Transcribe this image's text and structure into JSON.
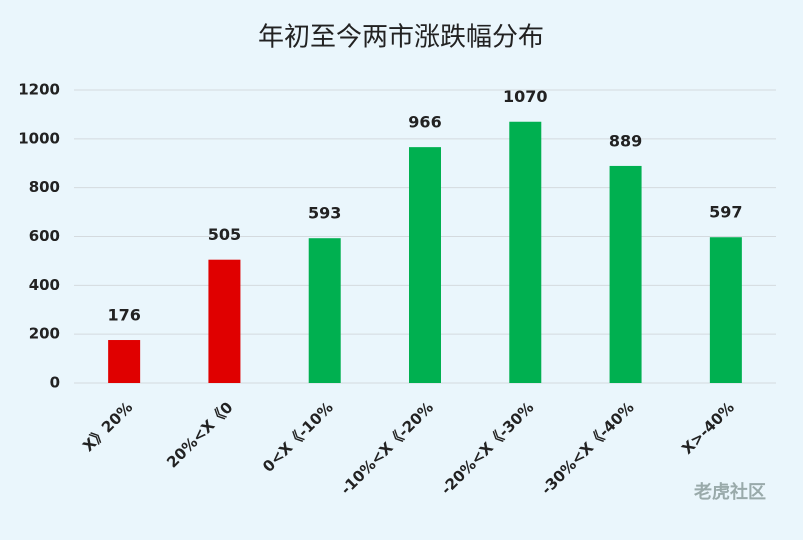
{
  "chart_data": {
    "type": "bar",
    "title": "年初至今两市涨跌幅分布",
    "categories": [
      "X》20%",
      "20%<X《0",
      "0<X《-10%",
      "-10%<X《-20%",
      "-20%<X《-30%",
      "-30%<X《-40%",
      "X>-40%"
    ],
    "values": [
      176,
      505,
      593,
      966,
      1070,
      889,
      597
    ],
    "colors": [
      "#e00000",
      "#e00000",
      "#00b050",
      "#00b050",
      "#00b050",
      "#00b050",
      "#00b050"
    ],
    "ylim": [
      0,
      1200
    ],
    "yticks": [
      0,
      200,
      400,
      600,
      800,
      1000,
      1200
    ],
    "grid": true,
    "watermark": "老虎社区"
  }
}
